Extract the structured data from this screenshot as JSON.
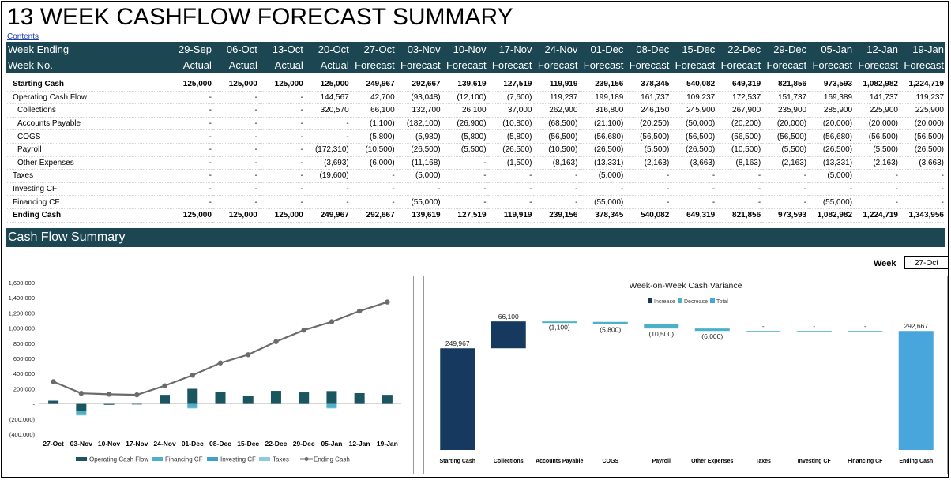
{
  "title": "13 WEEK CASHFLOW FORECAST SUMMARY",
  "contents_link": "Contents",
  "table": {
    "header1_label": "Week Ending",
    "header2_label": "Week No.",
    "weeks": [
      "29-Sep",
      "06-Oct",
      "13-Oct",
      "20-Oct",
      "27-Oct",
      "03-Nov",
      "10-Nov",
      "17-Nov",
      "24-Nov",
      "01-Dec",
      "08-Dec",
      "15-Dec",
      "22-Dec",
      "29-Dec",
      "05-Jan",
      "12-Jan",
      "19-Jan"
    ],
    "types": [
      "Actual",
      "Actual",
      "Actual",
      "Actual",
      "Forecast",
      "Forecast",
      "Forecast",
      "Forecast",
      "Forecast",
      "Forecast",
      "Forecast",
      "Forecast",
      "Forecast",
      "Forecast",
      "Forecast",
      "Forecast",
      "Forecast"
    ],
    "rows": [
      {
        "label": "Starting Cash",
        "bold": true,
        "indent": 0,
        "values": [
          "125,000",
          "125,000",
          "125,000",
          "125,000",
          "249,967",
          "292,667",
          "139,619",
          "127,519",
          "119,919",
          "239,156",
          "378,345",
          "540,082",
          "649,319",
          "821,856",
          "973,593",
          "1,082,982",
          "1,224,719"
        ]
      },
      {
        "label": "Operating Cash Flow",
        "bold": false,
        "indent": 0,
        "values": [
          "-",
          "-",
          "-",
          "144,567",
          "42,700",
          "(93,048)",
          "(12,100)",
          "(7,600)",
          "119,237",
          "199,189",
          "161,737",
          "109,237",
          "172,537",
          "151,737",
          "169,389",
          "141,737",
          "119,237"
        ]
      },
      {
        "label": "Collections",
        "bold": false,
        "indent": 1,
        "values": [
          "-",
          "-",
          "-",
          "320,570",
          "66,100",
          "132,700",
          "26,100",
          "37,000",
          "262,900",
          "316,800",
          "246,150",
          "245,900",
          "267,900",
          "235,900",
          "285,900",
          "225,900",
          "225,900"
        ]
      },
      {
        "label": "Accounts Payable",
        "bold": false,
        "indent": 1,
        "values": [
          "-",
          "-",
          "-",
          "-",
          "(1,100)",
          "(182,100)",
          "(26,900)",
          "(10,800)",
          "(68,500)",
          "(21,100)",
          "(20,250)",
          "(50,000)",
          "(20,200)",
          "(20,000)",
          "(20,000)",
          "(20,000)",
          "(20,000)"
        ]
      },
      {
        "label": "COGS",
        "bold": false,
        "indent": 1,
        "values": [
          "-",
          "-",
          "-",
          "-",
          "(5,800)",
          "(5,980)",
          "(5,800)",
          "(5,800)",
          "(56,500)",
          "(56,680)",
          "(56,500)",
          "(56,500)",
          "(56,500)",
          "(56,500)",
          "(56,680)",
          "(56,500)",
          "(56,500)"
        ]
      },
      {
        "label": "Payroll",
        "bold": false,
        "indent": 1,
        "values": [
          "-",
          "-",
          "-",
          "(172,310)",
          "(10,500)",
          "(26,500)",
          "(5,500)",
          "(26,500)",
          "(10,500)",
          "(26,500)",
          "(5,500)",
          "(26,500)",
          "(10,500)",
          "(5,500)",
          "(26,500)",
          "(5,500)",
          "(26,500)"
        ]
      },
      {
        "label": "Other Expenses",
        "bold": false,
        "indent": 1,
        "values": [
          "-",
          "-",
          "-",
          "(3,693)",
          "(6,000)",
          "(11,168)",
          "-",
          "(1,500)",
          "(8,163)",
          "(13,331)",
          "(2,163)",
          "(3,663)",
          "(8,163)",
          "(2,163)",
          "(13,331)",
          "(2,163)",
          "(3,663)"
        ]
      },
      {
        "label": "Taxes",
        "bold": false,
        "indent": 0,
        "values": [
          "-",
          "-",
          "-",
          "(19,600)",
          "-",
          "(5,000)",
          "-",
          "-",
          "-",
          "(5,000)",
          "-",
          "-",
          "-",
          "-",
          "(5,000)",
          "-",
          "-"
        ]
      },
      {
        "label": "Investing CF",
        "bold": false,
        "indent": 0,
        "values": [
          "-",
          "-",
          "-",
          "-",
          "-",
          "-",
          "-",
          "-",
          "-",
          "-",
          "-",
          "-",
          "-",
          "-",
          "-",
          "-",
          "-"
        ]
      },
      {
        "label": "Financing CF",
        "bold": false,
        "indent": 0,
        "values": [
          "-",
          "-",
          "-",
          "-",
          "-",
          "(55,000)",
          "-",
          "-",
          "-",
          "(55,000)",
          "-",
          "-",
          "-",
          "-",
          "(55,000)",
          "-",
          "-"
        ]
      },
      {
        "label": "Ending Cash",
        "bold": true,
        "indent": 0,
        "values": [
          "125,000",
          "125,000",
          "125,000",
          "249,967",
          "292,667",
          "139,619",
          "127,519",
          "119,919",
          "239,156",
          "378,345",
          "540,082",
          "649,319",
          "821,856",
          "973,593",
          "1,082,982",
          "1,224,719",
          "1,343,956"
        ]
      }
    ]
  },
  "section_title": "Cash Flow Summary",
  "week_selector": {
    "label": "Week",
    "value": "27-Oct"
  },
  "colors": {
    "header": "#1b4652",
    "operating": "#1b5560",
    "financing": "#4fb1c9",
    "investing": "#3ea3c6",
    "taxes": "#8ec9dd",
    "ending": "#6b6b6b",
    "increase": "#163a5f",
    "decrease": "#4cb1c8",
    "total": "#49a6dc"
  },
  "chart_data": [
    {
      "type": "bar+line",
      "title": "",
      "categories": [
        "27-Oct",
        "03-Nov",
        "10-Nov",
        "17-Nov",
        "24-Nov",
        "01-Dec",
        "08-Dec",
        "15-Dec",
        "22-Dec",
        "29-Dec",
        "05-Jan",
        "12-Jan",
        "19-Jan"
      ],
      "ylim": [
        -400000,
        1600000
      ],
      "yticks": [
        "(400,000)",
        "(200,000)",
        "-",
        "200,000",
        "400,000",
        "600,000",
        "800,000",
        "1,000,000",
        "1,200,000",
        "1,400,000",
        "1,600,000"
      ],
      "legend_position": "bottom",
      "series": [
        {
          "name": "Operating Cash Flow",
          "kind": "bar",
          "values": [
            42700,
            -93048,
            -12100,
            -7600,
            119237,
            199189,
            161737,
            109237,
            172537,
            151737,
            169389,
            141737,
            119237
          ]
        },
        {
          "name": "Financing CF",
          "kind": "bar",
          "values": [
            0,
            -55000,
            0,
            0,
            0,
            -55000,
            0,
            0,
            0,
            0,
            -55000,
            0,
            0
          ]
        },
        {
          "name": "Investing CF",
          "kind": "bar",
          "values": [
            0,
            0,
            0,
            0,
            0,
            0,
            0,
            0,
            0,
            0,
            0,
            0,
            0
          ]
        },
        {
          "name": "Taxes",
          "kind": "bar",
          "values": [
            0,
            -5000,
            0,
            0,
            0,
            -5000,
            0,
            0,
            0,
            0,
            -5000,
            0,
            0
          ]
        },
        {
          "name": "Ending Cash",
          "kind": "line",
          "values": [
            292667,
            139619,
            127519,
            119919,
            239156,
            378345,
            540082,
            649319,
            821856,
            973593,
            1082982,
            1224719,
            1343956
          ]
        }
      ]
    },
    {
      "type": "waterfall",
      "title": "Week-on-Week Cash Variance",
      "legend": [
        "Increase",
        "Decrease",
        "Total"
      ],
      "legend_position": "top",
      "categories": [
        "Starting Cash",
        "Collections",
        "Accounts Payable",
        "COGS",
        "Payroll",
        "Other Expenses",
        "Taxes",
        "Investing CF",
        "Financing CF",
        "Ending Cash"
      ],
      "values": [
        249967,
        66100,
        -1100,
        -5800,
        -10500,
        -6000,
        0,
        0,
        0,
        292667
      ],
      "kinds": [
        "total",
        "increase",
        "decrease",
        "decrease",
        "decrease",
        "decrease",
        "decrease",
        "decrease",
        "decrease",
        "total"
      ],
      "labels": [
        "249,967",
        "66,100",
        "(1,100)",
        "(5,800)",
        "(10,500)",
        "(6,000)",
        "-",
        "-",
        "-",
        "292,667"
      ],
      "ylim": [
        0,
        330000
      ]
    }
  ]
}
